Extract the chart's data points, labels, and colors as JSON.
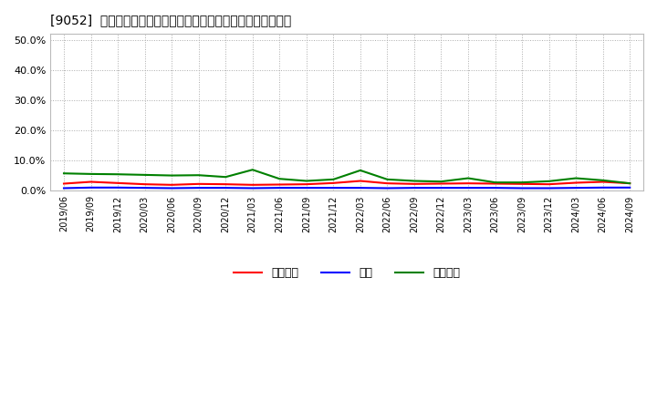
{
  "title": "[9052]  売上債権、在庫、買入債務の総資産に対する比率の推移",
  "ylim": [
    0.0,
    0.52
  ],
  "yticks": [
    0.0,
    0.1,
    0.2,
    0.3,
    0.4,
    0.5
  ],
  "legend_labels": [
    "売上債権",
    "在庫",
    "買入債務"
  ],
  "line_colors": [
    "#ff0000",
    "#0000ff",
    "#008000"
  ],
  "background_color": "#ffffff",
  "dates": [
    "2019/06",
    "2019/09",
    "2019/12",
    "2020/03",
    "2020/06",
    "2020/09",
    "2020/12",
    "2021/03",
    "2021/06",
    "2021/09",
    "2021/12",
    "2022/03",
    "2022/06",
    "2022/09",
    "2022/12",
    "2023/03",
    "2023/06",
    "2023/09",
    "2023/12",
    "2024/03",
    "2024/06",
    "2024/09"
  ],
  "urikake": [
    0.024,
    0.03,
    0.026,
    0.022,
    0.02,
    0.023,
    0.022,
    0.02,
    0.021,
    0.022,
    0.026,
    0.033,
    0.025,
    0.023,
    0.024,
    0.025,
    0.024,
    0.023,
    0.022,
    0.027,
    0.03,
    0.025
  ],
  "zaiko": [
    0.009,
    0.011,
    0.011,
    0.01,
    0.009,
    0.01,
    0.01,
    0.009,
    0.01,
    0.01,
    0.01,
    0.01,
    0.009,
    0.01,
    0.01,
    0.01,
    0.01,
    0.009,
    0.009,
    0.01,
    0.011,
    0.011
  ],
  "kaiire": [
    0.058,
    0.056,
    0.055,
    0.053,
    0.051,
    0.052,
    0.046,
    0.07,
    0.04,
    0.033,
    0.038,
    0.068,
    0.038,
    0.033,
    0.031,
    0.042,
    0.028,
    0.028,
    0.032,
    0.042,
    0.035,
    0.025
  ]
}
